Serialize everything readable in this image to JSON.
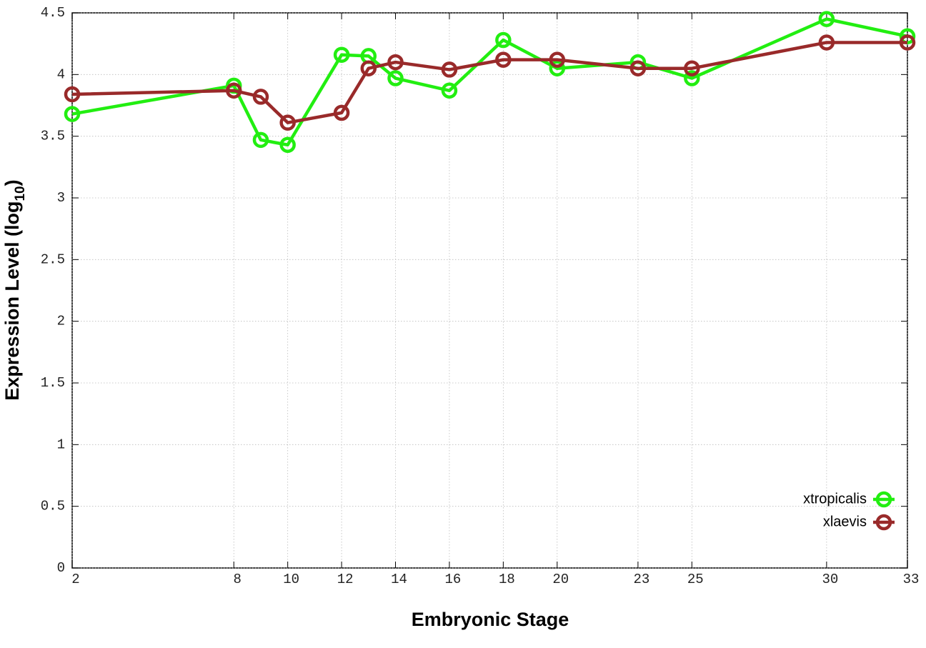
{
  "chart_data": {
    "type": "line",
    "x_label": "Embryonic Stage",
    "y_label": {
      "text": "Expression Level (log",
      "subscript": "10",
      "suffix": ")"
    },
    "x": [
      2,
      8,
      9,
      10,
      12,
      13,
      14,
      16,
      18,
      20,
      23,
      25,
      30,
      33
    ],
    "series": [
      {
        "name": "xtropicalis",
        "color": "#22ee11",
        "values": [
          3.68,
          3.91,
          3.47,
          3.43,
          4.16,
          4.15,
          3.97,
          3.87,
          4.28,
          4.05,
          4.1,
          3.97,
          4.45,
          4.31
        ]
      },
      {
        "name": "xlaevis",
        "color": "#992a2a",
        "values": [
          3.84,
          3.87,
          3.82,
          3.61,
          3.69,
          4.05,
          4.1,
          4.04,
          4.12,
          4.12,
          4.05,
          4.05,
          4.26,
          4.26
        ]
      }
    ],
    "xlim": [
      2,
      33
    ],
    "xticks": [
      2,
      8,
      10,
      12,
      14,
      16,
      18,
      20,
      23,
      25,
      30,
      33
    ],
    "ylim": [
      0,
      4.5
    ],
    "yticks": [
      0,
      0.5,
      1,
      1.5,
      2,
      2.5,
      3,
      3.5,
      4,
      4.5
    ],
    "grid": true,
    "legend": "bottom-right"
  }
}
